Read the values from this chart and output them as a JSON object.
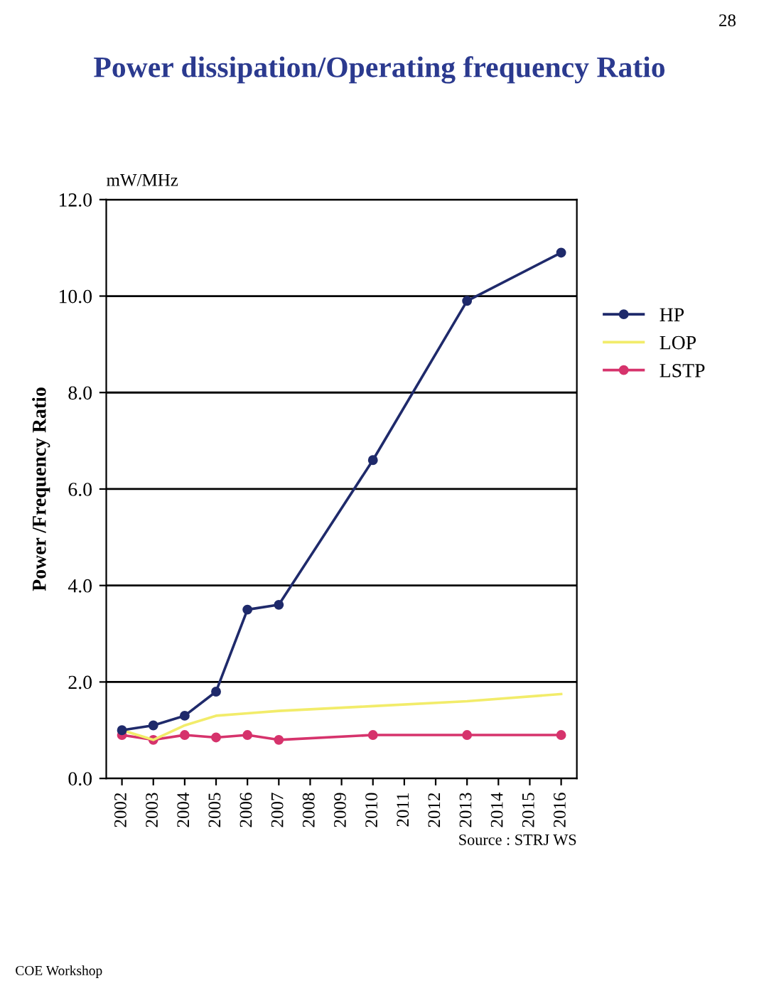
{
  "chart_data": {
    "type": "line",
    "title": "Power dissipation/Operating frequency Ratio",
    "ylabel": "Power /Frequency Ratio",
    "annotations": [
      "mW/MHz",
      "Source : STRJ WS",
      "COE Workshop",
      "28"
    ],
    "x": [
      2002,
      2003,
      2004,
      2005,
      2006,
      2007,
      2010,
      2013,
      2016
    ],
    "series": [
      {
        "name": "HP",
        "color": "#1f2a6b",
        "marker": "circle",
        "values": [
          1.0,
          1.1,
          1.3,
          1.8,
          3.5,
          3.6,
          6.6,
          9.9,
          10.9
        ]
      },
      {
        "name": "LOP",
        "color": "#f2ec6a",
        "marker": "none",
        "values": [
          1.0,
          0.8,
          1.1,
          1.3,
          1.35,
          1.4,
          1.5,
          1.6,
          1.75
        ]
      },
      {
        "name": "LSTP",
        "color": "#d6336c",
        "marker": "circle",
        "values": [
          0.9,
          0.8,
          0.9,
          0.85,
          0.9,
          0.8,
          0.9,
          0.9,
          0.9
        ]
      }
    ],
    "xlim": [
      2001.5,
      2016.5
    ],
    "xticks": [
      2002,
      2003,
      2004,
      2005,
      2006,
      2007,
      2008,
      2009,
      2010,
      2011,
      2012,
      2013,
      2014,
      2015,
      2016
    ],
    "ylim": [
      0,
      12
    ],
    "yticks": [
      {
        "value": 0,
        "label": "0.0"
      },
      {
        "value": 2,
        "label": "2.0"
      },
      {
        "value": 4,
        "label": "4.0"
      },
      {
        "value": 6,
        "label": "6.0"
      },
      {
        "value": 8,
        "label": "8.0"
      },
      {
        "value": 10,
        "label": "10.0"
      },
      {
        "value": 12,
        "label": "12.0"
      }
    ],
    "grid": "y",
    "legend": "right"
  }
}
